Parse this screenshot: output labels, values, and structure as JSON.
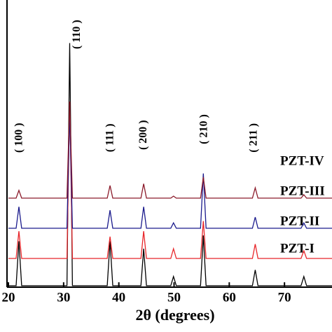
{
  "chart_data": {
    "type": "line",
    "x_label": "2θ (degrees)",
    "x": [
      20,
      21.4,
      21.9,
      22.4,
      30.6,
      31.1,
      31.6,
      37.9,
      38.4,
      38.9,
      44.0,
      44.5,
      45.0,
      49.4,
      49.9,
      50.4,
      54.8,
      55.3,
      55.8,
      64.2,
      64.7,
      65.2,
      73.0,
      73.5,
      74.0,
      80
    ],
    "xlim": [
      20,
      80
    ],
    "xticks": [
      20,
      30,
      40,
      50,
      60,
      70,
      80
    ],
    "ylim": [
      0,
      100
    ],
    "series": [
      {
        "name": "PZT-I",
        "color": "#000000",
        "values": [
          0.5,
          0.5,
          16,
          0.5,
          0.5,
          85,
          0.5,
          0.5,
          16,
          0.5,
          0.5,
          13.4,
          0.5,
          0.5,
          3.7,
          0.5,
          0.5,
          18,
          0.5,
          0.5,
          6,
          0.5,
          0.5,
          3.7,
          0.5,
          0.5
        ]
      },
      {
        "name": "PZT-II",
        "color": "#e8262a",
        "values": [
          10,
          10,
          19.5,
          10,
          10,
          64.6,
          10,
          10,
          17.6,
          10,
          10,
          19.5,
          10,
          10,
          13.4,
          10,
          10,
          23,
          10,
          10,
          15,
          10,
          10,
          12.7,
          10,
          10
        ]
      },
      {
        "name": "PZT-III",
        "color": "#1a1a8c",
        "values": [
          20.5,
          20.5,
          28,
          20.5,
          20.5,
          61,
          20.5,
          20.5,
          26.8,
          20.5,
          20.5,
          28,
          20.5,
          20.5,
          22.4,
          20.5,
          20.5,
          39.6,
          20.5,
          20.5,
          24.4,
          20.5,
          20.5,
          22.4,
          20.5,
          20.5
        ]
      },
      {
        "name": "PZT-IV",
        "color": "#8b1a2a",
        "values": [
          31,
          31,
          33.7,
          31,
          31,
          64.6,
          31,
          31,
          35.4,
          31,
          31,
          36,
          31,
          31,
          31.7,
          31,
          31,
          38.3,
          31,
          31,
          34.6,
          31,
          31,
          32.2,
          31,
          31
        ]
      }
    ],
    "annotations": [
      {
        "text": "( 100 )",
        "x": 22,
        "y": 52
      },
      {
        "text": "( 110 )",
        "x": 32.5,
        "y": 88
      },
      {
        "text": "( 111 )",
        "x": 38.5,
        "y": 52
      },
      {
        "text": "( 200 )",
        "x": 44.5,
        "y": 53
      },
      {
        "text": "( 210 )",
        "x": 55.5,
        "y": 55
      },
      {
        "text": "( 211 )",
        "x": 64.5,
        "y": 52
      }
    ]
  }
}
